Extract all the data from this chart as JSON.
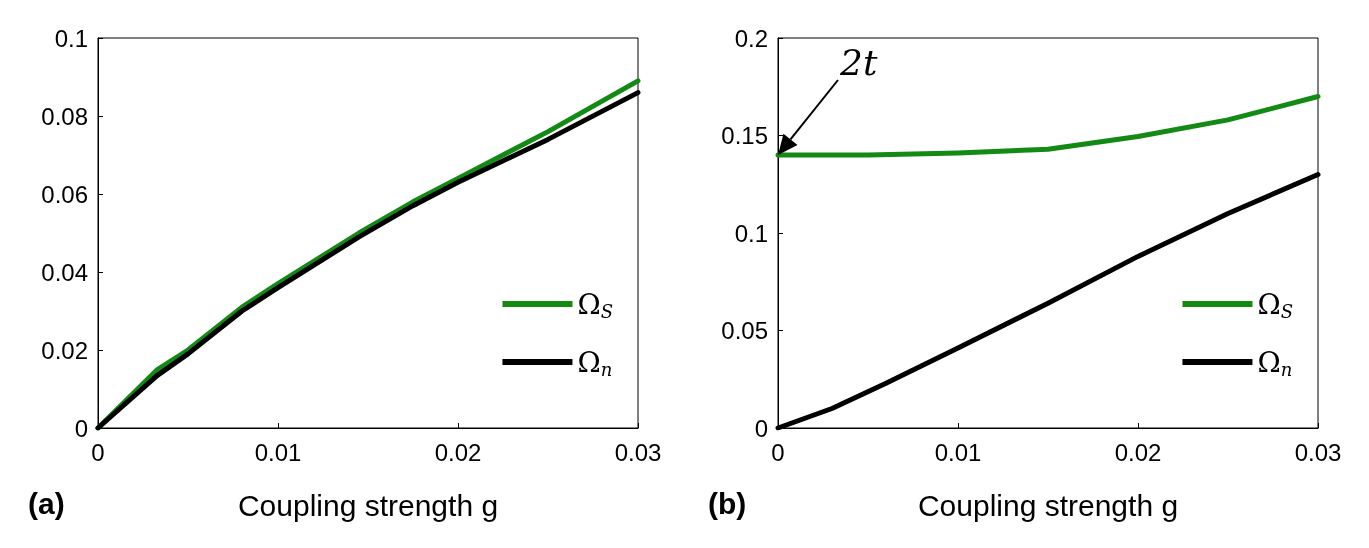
{
  "chart_data": [
    {
      "type": "line",
      "xlabel": "Coupling strength g",
      "annotations": [
        "(a)"
      ],
      "xlim": [
        0,
        0.03
      ],
      "xticks": [
        0,
        0.01,
        0.02,
        0.03
      ],
      "ylim": [
        0,
        0.1
      ],
      "yticks": [
        0,
        0.02,
        0.04,
        0.06,
        0.08,
        0.1
      ],
      "grid": false,
      "legend": "bottom right",
      "marker": "none",
      "line_style": "solid",
      "series": [
        {
          "name": "Ω$_{S}$",
          "color": "#138a13",
          "x": [
            0,
            0.0033,
            0.005,
            0.008,
            0.01,
            0.0145,
            0.0175,
            0.02,
            0.025,
            0.03
          ],
          "values": [
            0,
            0.015,
            0.02,
            0.031,
            0.037,
            0.05,
            0.058,
            0.064,
            0.076,
            0.089
          ]
        },
        {
          "name": "Ω$_{n}$",
          "color": "#000000",
          "x": [
            0,
            0.0033,
            0.005,
            0.008,
            0.01,
            0.0145,
            0.0175,
            0.02,
            0.025,
            0.03
          ],
          "values": [
            0,
            0.0135,
            0.019,
            0.03,
            0.036,
            0.049,
            0.057,
            0.063,
            0.074,
            0.086
          ]
        }
      ]
    },
    {
      "type": "line",
      "xlabel": "Coupling strength g",
      "annotations": [
        "(b)",
        {
          "text": "2t",
          "x": 0,
          "y": 0.14
        }
      ],
      "xlim": [
        0,
        0.03
      ],
      "xticks": [
        0,
        0.01,
        0.02,
        0.03
      ],
      "ylim": [
        0,
        0.2
      ],
      "yticks": [
        0,
        0.05,
        0.1,
        0.15,
        0.2
      ],
      "grid": false,
      "legend": "bottom right",
      "marker": "none",
      "line_style": "solid",
      "series": [
        {
          "name": "Ω$_{S}$",
          "color": "#138a13",
          "x": [
            0,
            0.005,
            0.01,
            0.015,
            0.02,
            0.025,
            0.03
          ],
          "values": [
            0.14,
            0.14,
            0.141,
            0.143,
            0.1495,
            0.158,
            0.17
          ]
        },
        {
          "name": "Ω$_{n}$",
          "color": "#000000",
          "x": [
            0,
            0.003,
            0.006,
            0.01,
            0.015,
            0.02,
            0.025,
            0.03
          ],
          "values": [
            0,
            0.01,
            0.023,
            0.041,
            0.064,
            0.088,
            0.11,
            0.13
          ]
        }
      ]
    }
  ]
}
